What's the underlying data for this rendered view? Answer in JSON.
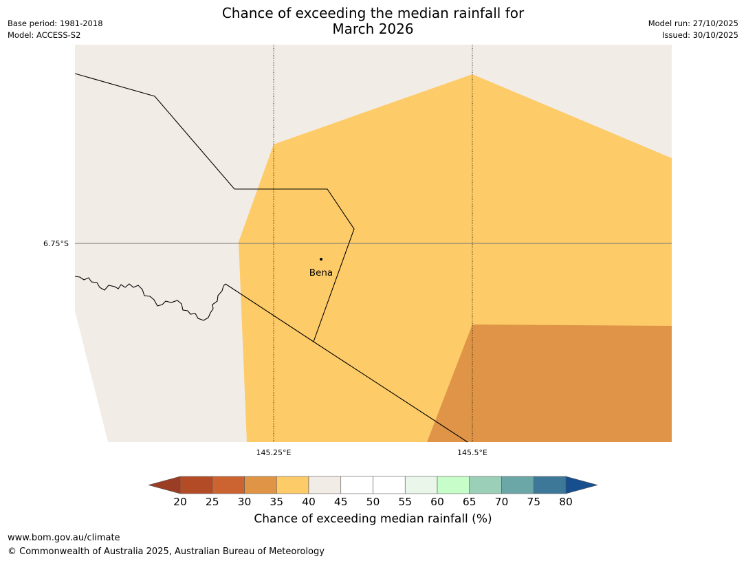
{
  "title": {
    "line1": "Chance of exceeding the median rainfall for",
    "line2": "March 2026"
  },
  "meta": {
    "base_period": "Base period: 1981-2018",
    "model": "Model: ACCESS-S2",
    "model_run": "Model run: 27/10/2025",
    "issued": "Issued: 30/10/2025"
  },
  "map": {
    "place_label": "Bena",
    "lat_label": "6.75°S",
    "lon_labels": [
      "145.25°E",
      "145.5°E"
    ],
    "region_values_pct": {
      "background": "40-45",
      "central": "35-40",
      "south_east": "30-35"
    }
  },
  "colorbar": {
    "title": "Chance of exceeding median rainfall (%)",
    "ticks": [
      "20",
      "25",
      "30",
      "35",
      "40",
      "45",
      "50",
      "55",
      "60",
      "65",
      "70",
      "75",
      "80"
    ],
    "colors": {
      "below20": "#9b3d25",
      "c20_25": "#b34b27",
      "c25_30": "#cc6431",
      "c30_35": "#e09546",
      "c35_40": "#fdcb67",
      "c40_45": "#f2ece6",
      "c45_50": "#ffffff",
      "c50_55": "#ffffff",
      "c55_60": "#eaf6ea",
      "c60_65": "#c6fdc8",
      "c65_70": "#9bcfb7",
      "c70_75": "#6ca7a7",
      "c75_80": "#3e7899",
      "above80": "#174f8e"
    }
  },
  "footer": {
    "url": "www.bom.gov.au/climate",
    "copyright": "© Commonwealth of Australia 2025, Australian Bureau of Meteorology"
  }
}
